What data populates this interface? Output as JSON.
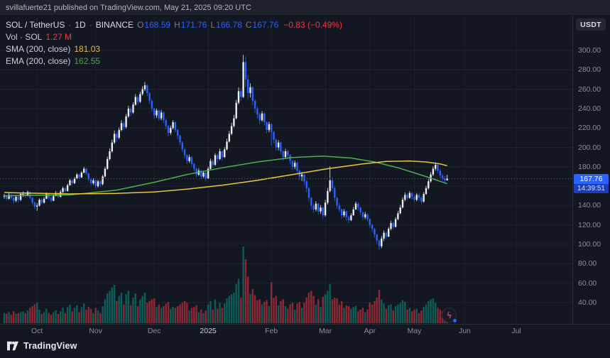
{
  "attribution": "svillafuerte21 published on TradingView.com, May 21, 2025 09:20 UTC",
  "legend": {
    "symbol": "SOL / TetherUS",
    "dot": "·",
    "interval": "1D",
    "exchange": "BINANCE",
    "ohlc": {
      "o_label": "O",
      "o": "168.59",
      "h_label": "H",
      "h": "171.76",
      "l_label": "L",
      "l": "166.78",
      "c_label": "C",
      "c": "167.76"
    },
    "change": "−0.83 (−0.49%)",
    "vol_label": "Vol · SOL",
    "vol_value": "1.27 M",
    "sma_label": "SMA (200, close)",
    "sma_value": "181.03",
    "ema_label": "EMA (200, close)",
    "ema_value": "162.55"
  },
  "axis": {
    "currency_badge": "USDT",
    "price_label": "167.76",
    "countdown": "14:39:51"
  },
  "footer": {
    "brand": "TradingView"
  },
  "icons": {
    "lightning_icon": "ϟ"
  },
  "colors": {
    "accent": "#2962ff",
    "up": "#eceef2",
    "down": "#2962ff",
    "vol_up": "rgba(8,153,129,0.55)",
    "vol_down": "rgba(242,54,69,0.55)",
    "sma": "#e8c63e",
    "ema": "#4caf50",
    "red": "#f23645",
    "grid": "#1e2330"
  },
  "chart_data": {
    "type": "candlestick",
    "title": "SOL / TetherUS · 1D · BINANCE",
    "symbol": "SOL/USDT",
    "exchange": "BINANCE",
    "interval": "1D",
    "ohlc_current": {
      "open": 168.59,
      "high": 171.76,
      "low": 166.78,
      "close": 167.76,
      "change": -0.83,
      "change_pct": -0.49
    },
    "volume_current_label": "1.27 M",
    "sma_200_current": 181.03,
    "ema_200_current": 162.55,
    "last_price": 167.76,
    "countdown": "14:39:51",
    "y_ticks": [
      300,
      280,
      260,
      240,
      220,
      200,
      180,
      160,
      140,
      120,
      100,
      80,
      60,
      40
    ],
    "volume_max": 9,
    "candle_format": [
      "close",
      "high",
      "low",
      "volume_millions"
    ],
    "x_labels": [
      {
        "label": "Oct",
        "i": 14
      },
      {
        "label": "Nov",
        "i": 39
      },
      {
        "label": "Dec",
        "i": 64
      },
      {
        "label": "2025",
        "i": 87,
        "year": true
      },
      {
        "label": "Feb",
        "i": 114
      },
      {
        "label": "Mar",
        "i": 137
      },
      {
        "label": "Apr",
        "i": 156
      },
      {
        "label": "May",
        "i": 175
      },
      {
        "label": "Jun",
        "i": 196.5
      },
      {
        "label": "Jul",
        "i": 218.5
      }
    ],
    "sma_200": [
      [
        0,
        153.5
      ],
      [
        8,
        153
      ],
      [
        28,
        152
      ],
      [
        48,
        152.5
      ],
      [
        64,
        154
      ],
      [
        78,
        157
      ],
      [
        93,
        161
      ],
      [
        108,
        166
      ],
      [
        123,
        172
      ],
      [
        138,
        178
      ],
      [
        153,
        183
      ],
      [
        163,
        185.5
      ],
      [
        173,
        186
      ],
      [
        180,
        185
      ],
      [
        186,
        183
      ],
      [
        189,
        181
      ]
    ],
    "ema_200": [
      [
        0,
        150
      ],
      [
        8,
        150.5
      ],
      [
        28,
        151
      ],
      [
        48,
        156
      ],
      [
        64,
        164
      ],
      [
        78,
        172
      ],
      [
        93,
        179
      ],
      [
        108,
        185
      ],
      [
        123,
        189.5
      ],
      [
        136,
        191
      ],
      [
        148,
        189
      ],
      [
        158,
        185
      ],
      [
        168,
        179
      ],
      [
        176,
        173
      ],
      [
        183,
        167.5
      ],
      [
        189,
        162.5
      ]
    ],
    "candles": [
      [
        150,
        152,
        147,
        1.2
      ],
      [
        147,
        151,
        145,
        1.1
      ],
      [
        151,
        153,
        146,
        1.3
      ],
      [
        148,
        152,
        145.5,
        1.0
      ],
      [
        145,
        149.5,
        142,
        1.4
      ],
      [
        149,
        151,
        143.5,
        1.1
      ],
      [
        146,
        150.5,
        143,
        1.2
      ],
      [
        152,
        153,
        144.5,
        1.3
      ],
      [
        152,
        154.5,
        149,
        1.4
      ],
      [
        150,
        153,
        148,
        1.2
      ],
      [
        154,
        155.5,
        149.5,
        1.5
      ],
      [
        148,
        154.8,
        146.5,
        1.8
      ],
      [
        143,
        149,
        141,
        2.0
      ],
      [
        139,
        144,
        136.5,
        2.2
      ],
      [
        140,
        142.5,
        134.5,
        2.4
      ],
      [
        146,
        147.5,
        139,
        1.6
      ],
      [
        143,
        147.8,
        141.5,
        1.1
      ],
      [
        147,
        149,
        142,
        1.3
      ],
      [
        152,
        153.5,
        146.5,
        1.7
      ],
      [
        148,
        153,
        146,
        1.2
      ],
      [
        145,
        149.5,
        143.5,
        1.0
      ],
      [
        150,
        151.5,
        144.5,
        1.3
      ],
      [
        153,
        155,
        149.5,
        1.5
      ],
      [
        149,
        154,
        147.5,
        1.1
      ],
      [
        154,
        156,
        148.5,
        1.4
      ],
      [
        158,
        159.5,
        153,
        1.8
      ],
      [
        155,
        159,
        153.5,
        1.2
      ],
      [
        161,
        162.5,
        154.5,
        1.9
      ],
      [
        166,
        167.5,
        160.5,
        2.2
      ],
      [
        163,
        167,
        161,
        1.4
      ],
      [
        168,
        169.5,
        162,
        1.8
      ],
      [
        172,
        173.5,
        167,
        2.1
      ],
      [
        169,
        173,
        167.5,
        1.3
      ],
      [
        174,
        175.5,
        168.5,
        1.9
      ],
      [
        178,
        180,
        173,
        2.3
      ],
      [
        173,
        179,
        171.5,
        1.6
      ],
      [
        167,
        174,
        165.5,
        1.9
      ],
      [
        163,
        168.5,
        160.5,
        1.7
      ],
      [
        166,
        168,
        161.5,
        1.2
      ],
      [
        160,
        167,
        158,
        1.8
      ],
      [
        165,
        166.5,
        158.5,
        1.5
      ],
      [
        162,
        166.5,
        159.5,
        1.2
      ],
      [
        170,
        171.5,
        161,
        2.0
      ],
      [
        178,
        180,
        169,
        2.8
      ],
      [
        188,
        190.5,
        177,
        3.5
      ],
      [
        196,
        199,
        186.5,
        3.8
      ],
      [
        205,
        208,
        194.5,
        4.2
      ],
      [
        214,
        217.5,
        203.5,
        4.5
      ],
      [
        210,
        216,
        206,
        2.6
      ],
      [
        218,
        220.5,
        208.5,
        3.2
      ],
      [
        225,
        228,
        216.5,
        3.6
      ],
      [
        221,
        227,
        218,
        2.2
      ],
      [
        232,
        234.5,
        219.5,
        3.4
      ],
      [
        240,
        243,
        230.5,
        3.8
      ],
      [
        236,
        242,
        232.5,
        2.1
      ],
      [
        244,
        246.5,
        234.5,
        3.0
      ],
      [
        252,
        255,
        243,
        3.5
      ],
      [
        247,
        253.5,
        244,
        2.0
      ],
      [
        255,
        257.5,
        246,
        2.8
      ],
      [
        260,
        263,
        253.5,
        3.2
      ],
      [
        264,
        267.5,
        258,
        3.6
      ],
      [
        256,
        265,
        253,
        2.4
      ],
      [
        248,
        257,
        245,
        2.6
      ],
      [
        240,
        250,
        237,
        2.8
      ],
      [
        233,
        241,
        229.5,
        2.9
      ],
      [
        238,
        240,
        230.5,
        1.9
      ],
      [
        230,
        239,
        227.5,
        2.2
      ],
      [
        236,
        238.5,
        228,
        1.8
      ],
      [
        228,
        237,
        225,
        2.0
      ],
      [
        222,
        229.5,
        218.5,
        2.3
      ],
      [
        215,
        223,
        211.5,
        2.5
      ],
      [
        220,
        222.5,
        213,
        1.7
      ],
      [
        226,
        228,
        218.5,
        1.9
      ],
      [
        218,
        227,
        215.5,
        1.8
      ],
      [
        212,
        219,
        208.5,
        2.0
      ],
      [
        205,
        213,
        202,
        2.2
      ],
      [
        198,
        206.5,
        195,
        2.4
      ],
      [
        192,
        199,
        188.5,
        2.6
      ],
      [
        186,
        193,
        183,
        2.4
      ],
      [
        190,
        192.5,
        184,
        1.5
      ],
      [
        183,
        191,
        180.5,
        1.8
      ],
      [
        178,
        184,
        175,
        1.9
      ],
      [
        172,
        179,
        169.5,
        2.1
      ],
      [
        176,
        178.5,
        170.5,
        1.3
      ],
      [
        170,
        177,
        167.5,
        1.6
      ],
      [
        174,
        176,
        168.5,
        1.2
      ],
      [
        168,
        175,
        165.5,
        1.5
      ],
      [
        178,
        180,
        167.5,
        2.2
      ],
      [
        186,
        188.5,
        177,
        2.6
      ],
      [
        182,
        187.5,
        179,
        1.6
      ],
      [
        192,
        194,
        181,
        2.8
      ],
      [
        188,
        193.5,
        184.5,
        1.7
      ],
      [
        196,
        198.5,
        187,
        2.4
      ],
      [
        190,
        197,
        186.5,
        1.8
      ],
      [
        198,
        200.5,
        189,
        2.3
      ],
      [
        206,
        209,
        197,
        2.9
      ],
      [
        214,
        217,
        205,
        3.2
      ],
      [
        222,
        225.5,
        212.5,
        3.4
      ],
      [
        230,
        233.5,
        220.5,
        3.6
      ],
      [
        246,
        249,
        229,
        4.6
      ],
      [
        258,
        262,
        244.5,
        5.2
      ],
      [
        252,
        261,
        248,
        3.0
      ],
      [
        288,
        295.5,
        251,
        9.0
      ],
      [
        270,
        294,
        262,
        7.5
      ],
      [
        256,
        275,
        250,
        5.5
      ],
      [
        262,
        266,
        251.5,
        3.4
      ],
      [
        248,
        263,
        243.5,
        4.0
      ],
      [
        240,
        250,
        235.5,
        3.3
      ],
      [
        234,
        242,
        230,
        2.7
      ],
      [
        228,
        236,
        224,
        2.8
      ],
      [
        235,
        237.5,
        226.5,
        2.2
      ],
      [
        226,
        236,
        222.5,
        2.5
      ],
      [
        218,
        227,
        214.5,
        2.7
      ],
      [
        224,
        226.5,
        215.5,
        2.0
      ],
      [
        216,
        225,
        202,
        4.8
      ],
      [
        208,
        217,
        204,
        3.0
      ],
      [
        200,
        209,
        196.5,
        3.2
      ],
      [
        205,
        207.5,
        197,
        2.1
      ],
      [
        196,
        206,
        192.5,
        2.6
      ],
      [
        190,
        197,
        186.5,
        2.8
      ],
      [
        196,
        198.5,
        188,
        2.0
      ],
      [
        192,
        197.5,
        188.5,
        1.7
      ],
      [
        186,
        193,
        182.5,
        2.2
      ],
      [
        180,
        187,
        176.5,
        2.4
      ],
      [
        184,
        186.5,
        177.5,
        1.6
      ],
      [
        176,
        185,
        172.5,
        2.3
      ],
      [
        170,
        177,
        166.5,
        2.5
      ],
      [
        172,
        174.5,
        165.5,
        1.8
      ],
      [
        165,
        172.5,
        161.5,
        2.4
      ],
      [
        158,
        166,
        154,
        3.0
      ],
      [
        148,
        159,
        144.5,
        3.6
      ],
      [
        140,
        149,
        136,
        3.8
      ],
      [
        136,
        142,
        132.5,
        3.2
      ],
      [
        142,
        144.5,
        134,
        2.2
      ],
      [
        134,
        143,
        131,
        2.8
      ],
      [
        138,
        140.5,
        131.5,
        1.9
      ],
      [
        130,
        138.5,
        126,
        3.1
      ],
      [
        143,
        146,
        128.5,
        3.4
      ],
      [
        155,
        158,
        141,
        3.8
      ],
      [
        166,
        180.5,
        153.5,
        4.6
      ],
      [
        158,
        169,
        154.5,
        2.8
      ],
      [
        148,
        159.5,
        144.5,
        3.0
      ],
      [
        140,
        149,
        137,
        2.9
      ],
      [
        136,
        142.5,
        133,
        2.2
      ],
      [
        130,
        137,
        126.5,
        2.6
      ],
      [
        134,
        136.5,
        128,
        1.8
      ],
      [
        128,
        135,
        124.5,
        2.1
      ],
      [
        125,
        129.5,
        122,
        2.0
      ],
      [
        130,
        132,
        124,
        1.7
      ],
      [
        136,
        138.5,
        129.5,
        1.9
      ],
      [
        142,
        144,
        135.5,
        2.0
      ],
      [
        138,
        143.5,
        135,
        1.4
      ],
      [
        133,
        139,
        130.5,
        1.6
      ],
      [
        128,
        134,
        125,
        1.8
      ],
      [
        131,
        133.5,
        126,
        1.3
      ],
      [
        126,
        132,
        123.5,
        1.6
      ],
      [
        120,
        127,
        117,
        2.4
      ],
      [
        116,
        121.5,
        112.5,
        2.2
      ],
      [
        110,
        117,
        107,
        2.6
      ],
      [
        104,
        111,
        100.5,
        3.0
      ],
      [
        98,
        105,
        94.5,
        3.9
      ],
      [
        106,
        108.5,
        96,
        2.8
      ],
      [
        112,
        114.5,
        103.5,
        2.3
      ],
      [
        108,
        113.5,
        105,
        1.7
      ],
      [
        116,
        118,
        107.5,
        2.1
      ],
      [
        122,
        124.5,
        114.5,
        2.2
      ],
      [
        118,
        123.5,
        115.5,
        1.5
      ],
      [
        126,
        128,
        117.5,
        2.0
      ],
      [
        132,
        134.5,
        125,
        2.2
      ],
      [
        138,
        140.5,
        131,
        2.4
      ],
      [
        146,
        148.5,
        137,
        2.7
      ],
      [
        151,
        153.5,
        144.5,
        2.5
      ],
      [
        148,
        152.5,
        145.5,
        1.6
      ],
      [
        153,
        155,
        147,
        1.8
      ],
      [
        149,
        154,
        146.5,
        1.4
      ],
      [
        146,
        151,
        143.5,
        1.6
      ],
      [
        151,
        153,
        144.5,
        1.7
      ],
      [
        148,
        152.5,
        145,
        1.2
      ],
      [
        144,
        149.5,
        141.5,
        1.5
      ],
      [
        152,
        154,
        143,
        1.9
      ],
      [
        158,
        160.5,
        151,
        2.2
      ],
      [
        165,
        167.5,
        156.5,
        2.6
      ],
      [
        172,
        174.5,
        163.5,
        2.8
      ],
      [
        178,
        180.5,
        170.5,
        2.9
      ],
      [
        182,
        184.5,
        176,
        2.4
      ],
      [
        176,
        183,
        173.5,
        1.8
      ],
      [
        171,
        178,
        168.5,
        1.6
      ],
      [
        168,
        173,
        165.5,
        1.4
      ],
      [
        166,
        170.5,
        163,
        1.2
      ],
      [
        167.76,
        171.76,
        166.78,
        1.27
      ]
    ]
  }
}
